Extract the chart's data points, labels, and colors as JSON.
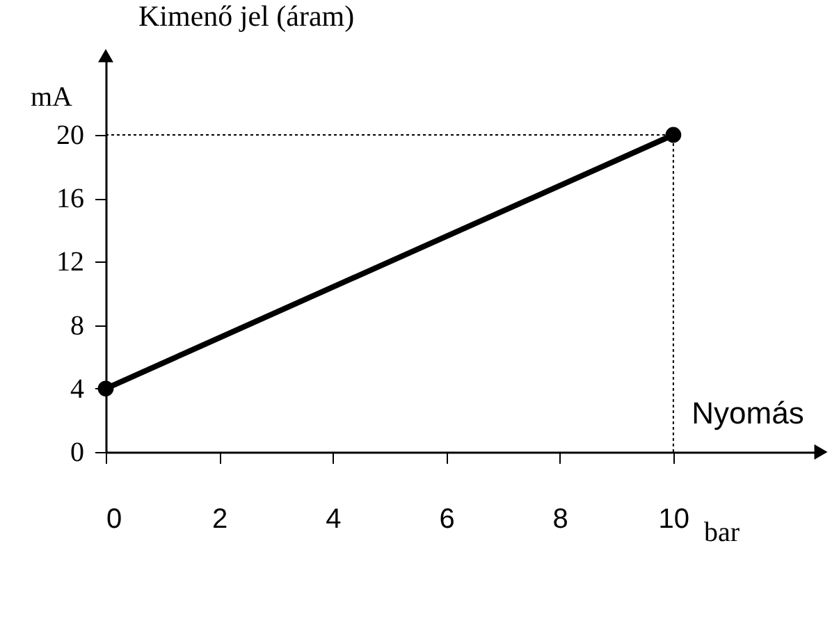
{
  "chart_data": {
    "type": "line",
    "xlabel": "Nyomás",
    "ylabel": "Kimenő jel (áram)",
    "x": [
      0,
      10
    ],
    "series": [
      {
        "color": "#000000",
        "values": [
          4,
          20
        ]
      }
    ],
    "marker": "circle",
    "line_style": "solid",
    "grid": false,
    "xlim": [
      0,
      12.6
    ],
    "ylim": [
      0,
      25
    ],
    "xticks": [
      0,
      2,
      4,
      6,
      8,
      10
    ],
    "yticks": [
      0,
      4,
      8,
      12,
      16,
      20
    ],
    "ref_lines": [
      {
        "axis": "y",
        "value": 20,
        "color": "#000000",
        "line_style": "dotted"
      },
      {
        "axis": "x",
        "value": 10,
        "color": "#000000",
        "line_style": "dotted"
      }
    ],
    "annotations": [
      "mA",
      "bar"
    ]
  }
}
